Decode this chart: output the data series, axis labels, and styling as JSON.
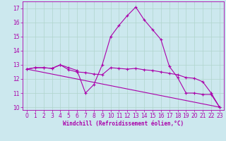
{
  "xlabel": "Windchill (Refroidissement éolien,°C)",
  "background_color": "#cce8ee",
  "grid_color": "#b0d4cc",
  "line_color": "#aa00aa",
  "xlim": [
    -0.5,
    23.5
  ],
  "ylim": [
    9.8,
    17.5
  ],
  "yticks": [
    10,
    11,
    12,
    13,
    14,
    15,
    16,
    17
  ],
  "xticks": [
    0,
    1,
    2,
    3,
    4,
    5,
    6,
    7,
    8,
    9,
    10,
    11,
    12,
    13,
    14,
    15,
    16,
    17,
    18,
    19,
    20,
    21,
    22,
    23
  ],
  "line1_x": [
    0,
    1,
    2,
    3,
    4,
    5,
    6,
    7,
    8,
    9,
    10,
    11,
    12,
    13,
    14,
    15,
    16,
    17,
    18,
    19,
    20,
    21,
    22,
    23
  ],
  "line1_y": [
    12.7,
    12.8,
    12.8,
    12.75,
    13.0,
    12.8,
    12.6,
    11.0,
    11.6,
    13.0,
    15.0,
    15.8,
    16.5,
    17.1,
    16.2,
    15.5,
    14.8,
    12.9,
    12.1,
    11.0,
    11.0,
    10.9,
    10.9,
    10.0
  ],
  "line2_x": [
    0,
    1,
    2,
    3,
    4,
    5,
    6,
    7,
    8,
    9,
    10,
    11,
    12,
    13,
    14,
    15,
    16,
    17,
    18,
    19,
    20,
    21,
    22,
    23
  ],
  "line2_y": [
    12.7,
    12.8,
    12.8,
    12.75,
    13.0,
    12.65,
    12.5,
    12.45,
    12.35,
    12.3,
    12.8,
    12.75,
    12.7,
    12.75,
    12.65,
    12.6,
    12.5,
    12.4,
    12.3,
    12.1,
    12.05,
    11.8,
    11.0,
    10.0
  ],
  "line3_x": [
    0,
    23
  ],
  "line3_y": [
    12.7,
    10.0
  ]
}
